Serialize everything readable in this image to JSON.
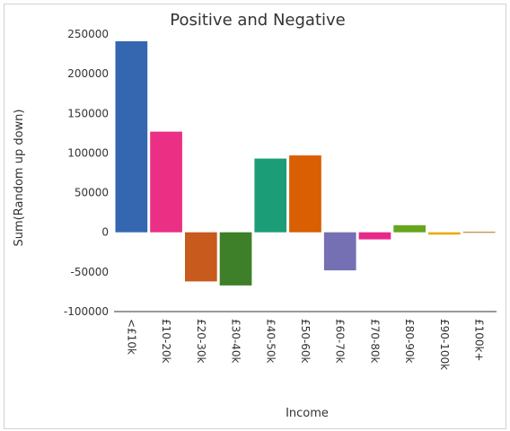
{
  "chart_data": {
    "type": "bar",
    "title": "Positive and Negative",
    "xlabel": "Income",
    "ylabel": "Sum(Random up down)",
    "categories": [
      "<£10k",
      "£10-20k",
      "£20-30k",
      "£30-40k",
      "£40-50k",
      "£50-60k",
      "£60-70k",
      "£70-80k",
      "£80-90k",
      "£90-100k",
      "£100k+"
    ],
    "values": [
      241000,
      127000,
      -62000,
      -67000,
      93000,
      97000,
      -48000,
      -9000,
      9000,
      -3000,
      0
    ],
    "ylim": [
      -100000,
      250000
    ],
    "yticks": [
      -100000,
      -50000,
      0,
      50000,
      100000,
      150000,
      200000,
      250000
    ],
    "ytick_labels": [
      "-100000",
      "-50000",
      "0",
      "50000",
      "100000",
      "150000",
      "200000",
      "250000"
    ],
    "grid": false,
    "colors": [
      "#3467b0",
      "#eb2f84",
      "#c75a1c",
      "#3d8029",
      "#1b9e77",
      "#d95f02",
      "#7570b3",
      "#e7298a",
      "#66a61e",
      "#e6ab02",
      "#a6761d"
    ]
  }
}
